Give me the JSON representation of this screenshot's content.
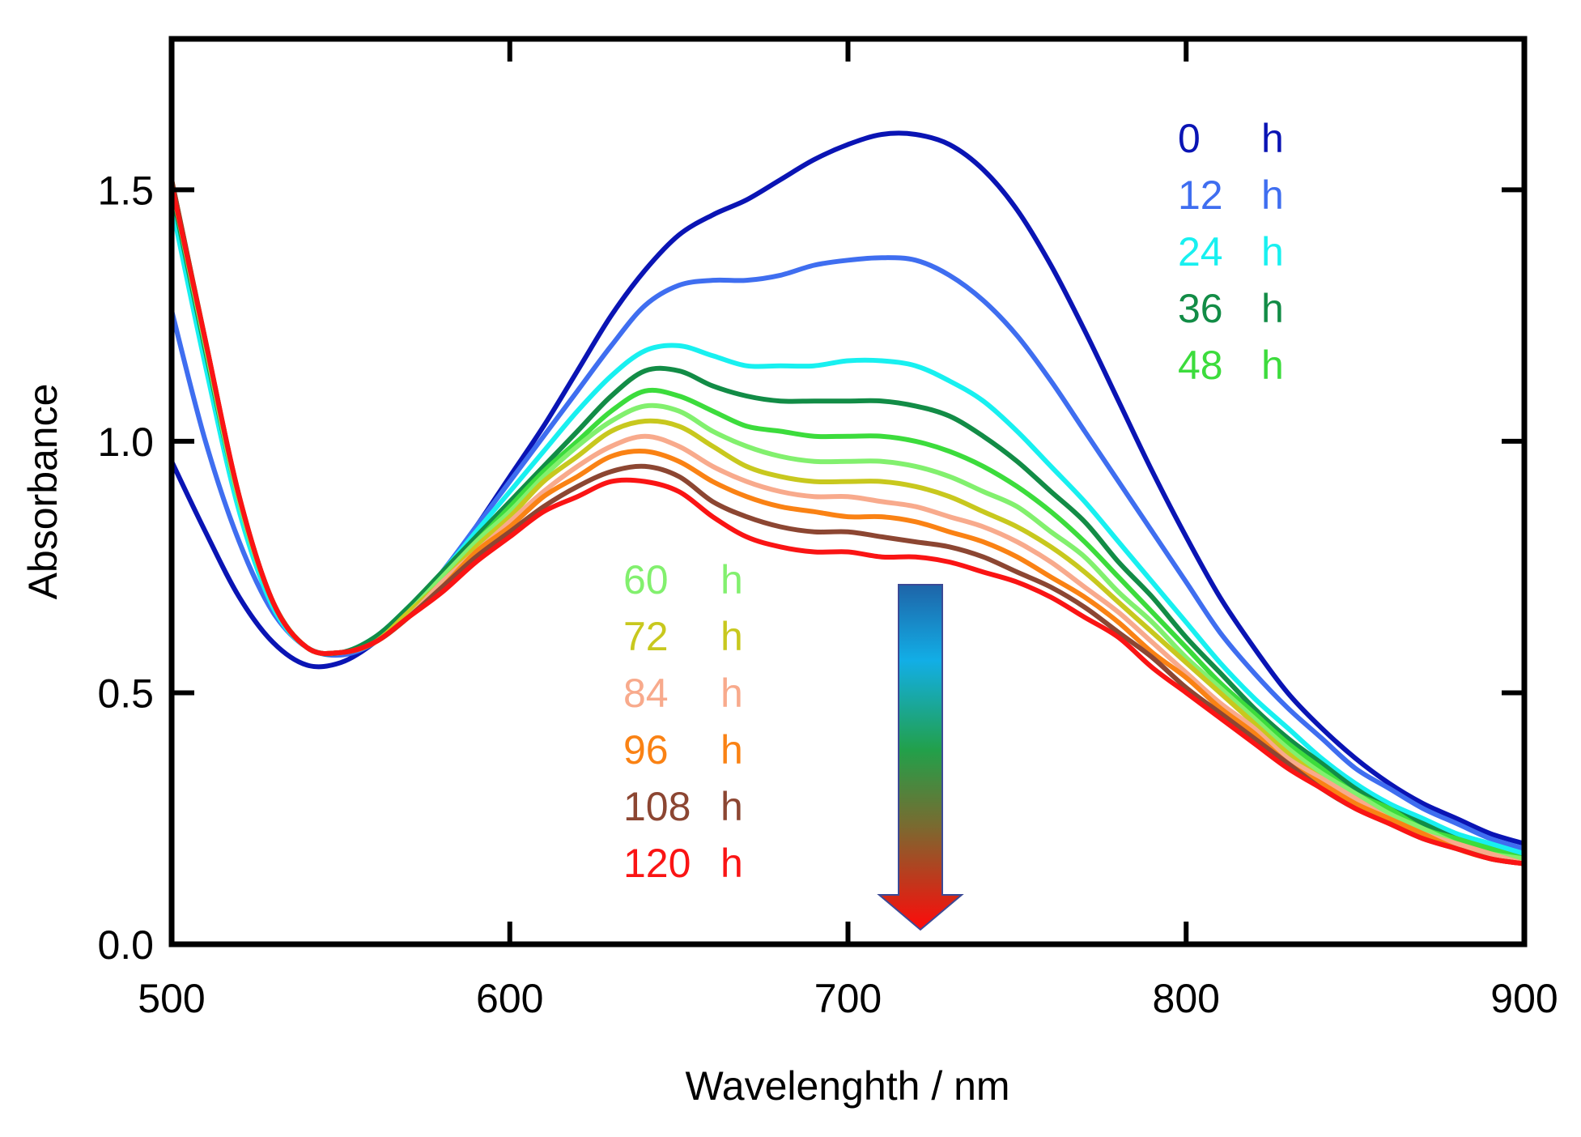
{
  "chart_data": {
    "type": "line",
    "title": "",
    "xlabel": "Wavelenghth / nm",
    "ylabel": "Absorbance",
    "xlim": [
      500,
      900
    ],
    "ylim": [
      0.0,
      1.8
    ],
    "xticks": [
      500,
      600,
      700,
      800,
      900
    ],
    "xtick_labels": [
      "500",
      "600",
      "700",
      "800",
      "900"
    ],
    "yticks": [
      0.0,
      0.5,
      1.0,
      1.5
    ],
    "ytick_labels": [
      "0.0",
      "0.5",
      "1.0",
      "1.5"
    ],
    "grid": false,
    "x": [
      500,
      510,
      520,
      530,
      540,
      550,
      560,
      570,
      580,
      590,
      600,
      610,
      620,
      630,
      640,
      650,
      660,
      670,
      680,
      690,
      700,
      710,
      720,
      730,
      740,
      750,
      760,
      770,
      780,
      790,
      800,
      810,
      820,
      830,
      840,
      850,
      860,
      870,
      880,
      890,
      900
    ],
    "series": [
      {
        "name": "0 h",
        "number": "0",
        "unit": "h",
        "color": "#0a14b4",
        "values": [
          0.96,
          0.82,
          0.69,
          0.6,
          0.555,
          0.56,
          0.6,
          0.66,
          0.74,
          0.83,
          0.93,
          1.03,
          1.14,
          1.25,
          1.34,
          1.41,
          1.45,
          1.48,
          1.52,
          1.56,
          1.59,
          1.61,
          1.61,
          1.59,
          1.54,
          1.46,
          1.35,
          1.22,
          1.08,
          0.94,
          0.81,
          0.69,
          0.59,
          0.5,
          0.43,
          0.37,
          0.32,
          0.28,
          0.25,
          0.22,
          0.2
        ]
      },
      {
        "name": "12 h",
        "number": "12",
        "unit": "h",
        "color": "#3f6ef0",
        "values": [
          1.26,
          1.0,
          0.8,
          0.66,
          0.59,
          0.575,
          0.6,
          0.66,
          0.74,
          0.83,
          0.92,
          1.01,
          1.1,
          1.19,
          1.27,
          1.31,
          1.32,
          1.32,
          1.33,
          1.35,
          1.36,
          1.365,
          1.36,
          1.33,
          1.28,
          1.21,
          1.12,
          1.02,
          0.92,
          0.82,
          0.72,
          0.62,
          0.54,
          0.47,
          0.41,
          0.35,
          0.31,
          0.27,
          0.24,
          0.21,
          0.19
        ]
      },
      {
        "name": "24 h",
        "number": "24",
        "unit": "h",
        "color": "#18f0f0",
        "values": [
          1.47,
          1.15,
          0.86,
          0.67,
          0.59,
          0.58,
          0.61,
          0.67,
          0.74,
          0.82,
          0.9,
          0.98,
          1.06,
          1.13,
          1.18,
          1.19,
          1.17,
          1.15,
          1.15,
          1.15,
          1.16,
          1.16,
          1.15,
          1.12,
          1.08,
          1.02,
          0.95,
          0.88,
          0.8,
          0.72,
          0.64,
          0.56,
          0.49,
          0.43,
          0.37,
          0.32,
          0.28,
          0.25,
          0.22,
          0.2,
          0.18
        ]
      },
      {
        "name": "36 h",
        "number": "36",
        "unit": "h",
        "color": "#128c46",
        "values": [
          1.5,
          1.18,
          0.88,
          0.68,
          0.59,
          0.58,
          0.61,
          0.67,
          0.74,
          0.81,
          0.88,
          0.95,
          1.02,
          1.09,
          1.14,
          1.14,
          1.11,
          1.09,
          1.08,
          1.08,
          1.08,
          1.08,
          1.07,
          1.05,
          1.01,
          0.96,
          0.9,
          0.84,
          0.76,
          0.69,
          0.61,
          0.54,
          0.47,
          0.41,
          0.36,
          0.31,
          0.27,
          0.24,
          0.21,
          0.19,
          0.17
        ]
      },
      {
        "name": "48 h",
        "number": "48",
        "unit": "h",
        "color": "#3cdc3c",
        "values": [
          1.51,
          1.19,
          0.88,
          0.68,
          0.59,
          0.58,
          0.6,
          0.66,
          0.73,
          0.8,
          0.87,
          0.94,
          1.0,
          1.06,
          1.1,
          1.09,
          1.06,
          1.03,
          1.02,
          1.01,
          1.01,
          1.01,
          1.0,
          0.98,
          0.95,
          0.91,
          0.86,
          0.8,
          0.73,
          0.66,
          0.59,
          0.52,
          0.46,
          0.4,
          0.35,
          0.3,
          0.27,
          0.23,
          0.21,
          0.19,
          0.17
        ]
      },
      {
        "name": "60 h",
        "number": "60",
        "unit": "h",
        "color": "#82f06e",
        "values": [
          1.51,
          1.19,
          0.88,
          0.68,
          0.59,
          0.58,
          0.6,
          0.66,
          0.73,
          0.8,
          0.86,
          0.93,
          0.99,
          1.04,
          1.07,
          1.06,
          1.02,
          0.99,
          0.97,
          0.96,
          0.96,
          0.96,
          0.95,
          0.93,
          0.9,
          0.87,
          0.82,
          0.77,
          0.7,
          0.64,
          0.57,
          0.51,
          0.45,
          0.39,
          0.34,
          0.3,
          0.26,
          0.23,
          0.2,
          0.18,
          0.17
        ]
      },
      {
        "name": "72 h",
        "number": "72",
        "unit": "h",
        "color": "#c8c81e",
        "values": [
          1.52,
          1.2,
          0.89,
          0.68,
          0.59,
          0.58,
          0.6,
          0.66,
          0.72,
          0.79,
          0.85,
          0.92,
          0.97,
          1.02,
          1.04,
          1.03,
          0.99,
          0.95,
          0.93,
          0.92,
          0.92,
          0.92,
          0.91,
          0.89,
          0.86,
          0.83,
          0.79,
          0.74,
          0.68,
          0.62,
          0.56,
          0.5,
          0.44,
          0.38,
          0.33,
          0.29,
          0.25,
          0.22,
          0.2,
          0.18,
          0.16
        ]
      },
      {
        "name": "84 h",
        "number": "84",
        "unit": "h",
        "color": "#f8aa8c",
        "values": [
          1.52,
          1.2,
          0.89,
          0.68,
          0.59,
          0.58,
          0.6,
          0.65,
          0.72,
          0.78,
          0.84,
          0.9,
          0.95,
          0.99,
          1.01,
          0.99,
          0.95,
          0.92,
          0.9,
          0.89,
          0.89,
          0.88,
          0.87,
          0.85,
          0.83,
          0.8,
          0.76,
          0.71,
          0.66,
          0.6,
          0.54,
          0.48,
          0.43,
          0.37,
          0.33,
          0.29,
          0.25,
          0.22,
          0.2,
          0.18,
          0.16
        ]
      },
      {
        "name": "96 h",
        "number": "96",
        "unit": "h",
        "color": "#fa8214",
        "values": [
          1.52,
          1.2,
          0.89,
          0.68,
          0.59,
          0.58,
          0.6,
          0.65,
          0.71,
          0.78,
          0.83,
          0.89,
          0.93,
          0.97,
          0.98,
          0.96,
          0.92,
          0.89,
          0.87,
          0.86,
          0.85,
          0.85,
          0.84,
          0.82,
          0.8,
          0.77,
          0.73,
          0.69,
          0.64,
          0.58,
          0.53,
          0.47,
          0.42,
          0.36,
          0.32,
          0.28,
          0.25,
          0.22,
          0.19,
          0.17,
          0.16
        ]
      },
      {
        "name": "108 h",
        "number": "108",
        "unit": "h",
        "color": "#8c4632",
        "values": [
          1.52,
          1.2,
          0.89,
          0.68,
          0.59,
          0.58,
          0.6,
          0.65,
          0.71,
          0.77,
          0.82,
          0.87,
          0.91,
          0.94,
          0.95,
          0.93,
          0.88,
          0.85,
          0.83,
          0.82,
          0.82,
          0.81,
          0.8,
          0.79,
          0.77,
          0.74,
          0.71,
          0.67,
          0.62,
          0.57,
          0.51,
          0.46,
          0.41,
          0.36,
          0.31,
          0.27,
          0.24,
          0.21,
          0.19,
          0.17,
          0.16
        ]
      },
      {
        "name": "120 h",
        "number": "120",
        "unit": "h",
        "color": "#fa1414",
        "values": [
          1.51,
          1.2,
          0.89,
          0.68,
          0.59,
          0.58,
          0.6,
          0.65,
          0.7,
          0.76,
          0.81,
          0.86,
          0.89,
          0.92,
          0.92,
          0.9,
          0.85,
          0.81,
          0.79,
          0.78,
          0.78,
          0.77,
          0.77,
          0.76,
          0.74,
          0.72,
          0.69,
          0.65,
          0.61,
          0.55,
          0.5,
          0.45,
          0.4,
          0.35,
          0.31,
          0.27,
          0.24,
          0.21,
          0.19,
          0.17,
          0.16
        ]
      }
    ],
    "legend_groups": [
      "top-right",
      "center"
    ],
    "annotation": {
      "type": "arrow",
      "direction": "down",
      "meaning": "decreasing absorbance over time",
      "x": 722,
      "y_start": 0.71,
      "y_end": 0.05
    }
  }
}
